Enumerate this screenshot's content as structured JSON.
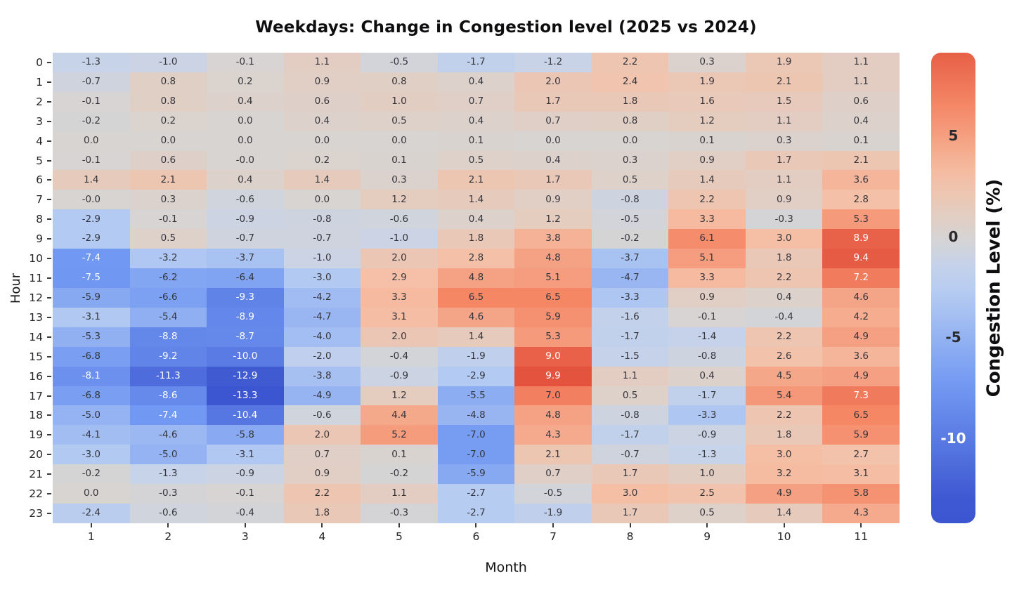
{
  "chart_data": {
    "type": "heatmap",
    "title": "Weekdays: Change in Congestion level (2025 vs 2024)",
    "xlabel": "Month",
    "ylabel": "Hour",
    "x_categories": [
      "1",
      "2",
      "3",
      "4",
      "5",
      "6",
      "7",
      "8",
      "9",
      "10",
      "11"
    ],
    "y_categories": [
      "0",
      "1",
      "2",
      "3",
      "4",
      "5",
      "6",
      "7",
      "8",
      "9",
      "10",
      "11",
      "12",
      "13",
      "14",
      "15",
      "16",
      "17",
      "18",
      "19",
      "20",
      "21",
      "22",
      "23"
    ],
    "values": [
      [
        "-1.3",
        "-1.0",
        "-0.1",
        "1.1",
        "-0.5",
        "-1.7",
        "-1.2",
        "2.2",
        "0.3",
        "1.9",
        "1.1"
      ],
      [
        "-0.7",
        "0.8",
        "0.2",
        "0.9",
        "0.8",
        "0.4",
        "2.0",
        "2.4",
        "1.9",
        "2.1",
        "1.1"
      ],
      [
        "-0.1",
        "0.8",
        "0.4",
        "0.6",
        "1.0",
        "0.7",
        "1.7",
        "1.8",
        "1.6",
        "1.5",
        "0.6"
      ],
      [
        "-0.2",
        "0.2",
        "0.0",
        "0.4",
        "0.5",
        "0.4",
        "0.7",
        "0.8",
        "1.2",
        "1.1",
        "0.4"
      ],
      [
        "0.0",
        "0.0",
        "0.0",
        "0.0",
        "0.0",
        "0.1",
        "0.0",
        "0.0",
        "0.1",
        "0.3",
        "0.1"
      ],
      [
        "-0.1",
        "0.6",
        "-0.0",
        "0.2",
        "0.1",
        "0.5",
        "0.4",
        "0.3",
        "0.9",
        "1.7",
        "2.1"
      ],
      [
        "1.4",
        "2.1",
        "0.4",
        "1.4",
        "0.3",
        "2.1",
        "1.7",
        "0.5",
        "1.4",
        "1.1",
        "3.6"
      ],
      [
        "-0.0",
        "0.3",
        "-0.6",
        "0.0",
        "1.2",
        "1.4",
        "0.9",
        "-0.8",
        "2.2",
        "0.9",
        "2.8"
      ],
      [
        "-2.9",
        "-0.1",
        "-0.9",
        "-0.8",
        "-0.6",
        "0.4",
        "1.2",
        "-0.5",
        "3.3",
        "-0.3",
        "5.3"
      ],
      [
        "-2.9",
        "0.5",
        "-0.7",
        "-0.7",
        "-1.0",
        "1.8",
        "3.8",
        "-0.2",
        "6.1",
        "3.0",
        "8.9"
      ],
      [
        "-7.4",
        "-3.2",
        "-3.7",
        "-1.0",
        "2.0",
        "2.8",
        "4.8",
        "-3.7",
        "5.1",
        "1.8",
        "9.4"
      ],
      [
        "-7.5",
        "-6.2",
        "-6.4",
        "-3.0",
        "2.9",
        "4.8",
        "5.1",
        "-4.7",
        "3.3",
        "2.2",
        "7.2"
      ],
      [
        "-5.9",
        "-6.6",
        "-9.3",
        "-4.2",
        "3.3",
        "6.5",
        "6.5",
        "-3.3",
        "0.9",
        "0.4",
        "4.6"
      ],
      [
        "-3.1",
        "-5.4",
        "-8.9",
        "-4.7",
        "3.1",
        "4.6",
        "5.9",
        "-1.6",
        "-0.1",
        "-0.4",
        "4.2"
      ],
      [
        "-5.3",
        "-8.8",
        "-8.7",
        "-4.0",
        "2.0",
        "1.4",
        "5.3",
        "-1.7",
        "-1.4",
        "2.2",
        "4.9"
      ],
      [
        "-6.8",
        "-9.2",
        "-10.0",
        "-2.0",
        "-0.4",
        "-1.9",
        "9.0",
        "-1.5",
        "-0.8",
        "2.6",
        "3.6"
      ],
      [
        "-8.1",
        "-11.3",
        "-12.9",
        "-3.8",
        "-0.9",
        "-2.9",
        "9.9",
        "1.1",
        "0.4",
        "4.5",
        "4.9"
      ],
      [
        "-6.8",
        "-8.6",
        "-13.3",
        "-4.9",
        "1.2",
        "-5.5",
        "7.0",
        "0.5",
        "-1.7",
        "5.4",
        "7.3"
      ],
      [
        "-5.0",
        "-7.4",
        "-10.4",
        "-0.6",
        "4.4",
        "-4.8",
        "4.8",
        "-0.8",
        "-3.3",
        "2.2",
        "6.5"
      ],
      [
        "-4.1",
        "-4.6",
        "-5.8",
        "2.0",
        "5.2",
        "-7.0",
        "4.3",
        "-1.7",
        "-0.9",
        "1.8",
        "5.9"
      ],
      [
        "-3.0",
        "-5.0",
        "-3.1",
        "0.7",
        "0.1",
        "-7.0",
        "2.1",
        "-0.7",
        "-1.3",
        "3.0",
        "2.7"
      ],
      [
        "-0.2",
        "-1.3",
        "-0.9",
        "0.9",
        "-0.2",
        "-5.9",
        "0.7",
        "1.7",
        "1.0",
        "3.2",
        "3.1"
      ],
      [
        "0.0",
        "-0.3",
        "-0.1",
        "2.2",
        "1.1",
        "-2.7",
        "-0.5",
        "3.0",
        "2.5",
        "4.9",
        "5.8"
      ],
      [
        "-2.4",
        "-0.6",
        "-0.4",
        "1.8",
        "-0.3",
        "-2.7",
        "-1.9",
        "1.7",
        "0.5",
        "1.4",
        "4.3"
      ]
    ],
    "vmin": -13.3,
    "vmax": 9.9,
    "colormap": [
      {
        "t": 0.0,
        "color": "#3c55d0"
      },
      {
        "t": 0.25,
        "color": "#7097f2"
      },
      {
        "t": 0.45,
        "color": "#b4cbf2"
      },
      {
        "t": 0.52,
        "color": "#c8d3e8"
      },
      {
        "t": 0.573,
        "color": "#d8d4d1"
      },
      {
        "t": 0.7,
        "color": "#f5c0a6"
      },
      {
        "t": 0.85,
        "color": "#f58866"
      },
      {
        "t": 1.0,
        "color": "#e3533d"
      }
    ],
    "text_colors": {
      "dark": "#35353c",
      "light": "#ffffff"
    },
    "colorbar": {
      "label": "Congestion Level (%)",
      "ticks": [
        {
          "value": 5,
          "label": "5"
        },
        {
          "value": 0,
          "label": "0"
        },
        {
          "value": -5,
          "label": "-5"
        },
        {
          "value": -10,
          "label": "-10"
        }
      ],
      "position": "right"
    },
    "grid": false,
    "legend_position": "right-colorbar"
  }
}
